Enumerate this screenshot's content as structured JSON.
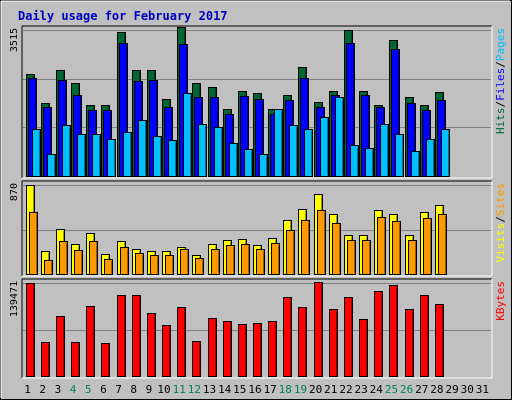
{
  "colors": {
    "hits": "#006633",
    "files": "#0000ff",
    "pages": "#00c0ff",
    "visits": "#ffff00",
    "sites": "#ff9900",
    "kbytes": "#ff0000",
    "weekday_label": "#000000",
    "weekend_label": "#00805c",
    "title": "#0000c0"
  },
  "chart_data": {
    "type": "bar",
    "title": "Daily usage for February 2017",
    "days": [
      "1",
      "2",
      "3",
      "4",
      "5",
      "6",
      "7",
      "8",
      "9",
      "10",
      "11",
      "12",
      "13",
      "14",
      "15",
      "16",
      "17",
      "18",
      "19",
      "20",
      "21",
      "22",
      "23",
      "24",
      "25",
      "26",
      "27",
      "28",
      "29",
      "30",
      "31"
    ],
    "weekend_days": [
      "4",
      "5",
      "11",
      "12",
      "18",
      "19",
      "25",
      "26"
    ],
    "panels": [
      {
        "id": "hits-files-pages",
        "ymax_label": "3515",
        "ymax": 3515,
        "legend": [
          {
            "text": "Hits",
            "color_key": "hits"
          },
          {
            "text": "/",
            "color_key": "weekday_label"
          },
          {
            "text": "Files",
            "color_key": "files"
          },
          {
            "text": "/",
            "color_key": "weekday_label"
          },
          {
            "text": "Pages",
            "color_key": "pages"
          }
        ],
        "series": [
          {
            "key": "hits",
            "values": [
              2460,
              1760,
              2540,
              2230,
              1700,
              1700,
              3460,
              2540,
              2540,
              1850,
              3590,
              2230,
              2150,
              1620,
              2050,
              2000,
              1620,
              1960,
              2620,
              1780,
              2050,
              3520,
              2050,
              1700,
              3270,
              1910,
              1700,
              2020,
              0,
              0,
              0
            ]
          },
          {
            "key": "files",
            "values": [
              2360,
              1650,
              2300,
              1940,
              1580,
              1600,
              3200,
              2280,
              2300,
              1660,
              3170,
              1900,
              1900,
              1500,
              1930,
              1860,
              1500,
              1830,
              2360,
              1670,
              1950,
              3200,
              1950,
              1650,
              3050,
              1760,
              1600,
              1830,
              0,
              0,
              0
            ]
          },
          {
            "key": "pages",
            "values": [
              1120,
              530,
              1230,
              1000,
              1000,
              900,
              1070,
              1340,
              960,
              870,
              2000,
              1250,
              1180,
              800,
              660,
              530,
              1620,
              1230,
              1130,
              1430,
              1910,
              740,
              680,
              1240,
              1020,
              590,
              880,
              1130,
              0,
              0,
              0
            ]
          }
        ]
      },
      {
        "id": "visits-sites",
        "ymax_label": "870",
        "ymax": 870,
        "legend": [
          {
            "text": "Visits",
            "color_key": "visits"
          },
          {
            "text": "/",
            "color_key": "weekday_label"
          },
          {
            "text": "Sites",
            "color_key": "sites"
          }
        ],
        "series": [
          {
            "key": "visits",
            "values": [
              870,
              220,
              440,
              290,
              400,
              200,
              320,
              240,
              220,
              220,
              260,
              190,
              290,
              330,
              340,
              280,
              350,
              530,
              640,
              780,
              590,
              380,
              380,
              630,
              590,
              380,
              610,
              670,
              0,
              0,
              0
            ]
          },
          {
            "key": "sites",
            "values": [
              610,
              140,
              320,
              230,
              320,
              150,
              260,
              210,
              190,
              190,
              240,
              160,
              240,
              280,
              290,
              240,
              300,
              430,
              530,
              630,
              500,
              330,
              330,
              560,
              520,
              330,
              550,
              590,
              0,
              0,
              0
            ]
          }
        ]
      },
      {
        "id": "kbytes",
        "ymax_label": "139471",
        "ymax": 139471,
        "legend": [
          {
            "text": "KBytes",
            "color_key": "kbytes"
          }
        ],
        "series": [
          {
            "key": "kbytes",
            "values": [
              139471,
              50800,
              90700,
              50800,
              105000,
              49000,
              121000,
              121000,
              94400,
              76000,
              103000,
              52600,
              87000,
              82000,
              78100,
              80000,
              82000,
              118000,
              104000,
              141000,
              101000,
              119000,
              85000,
              127000,
              136000,
              101000,
              121000,
              108000,
              0,
              0,
              0
            ]
          }
        ]
      }
    ]
  }
}
